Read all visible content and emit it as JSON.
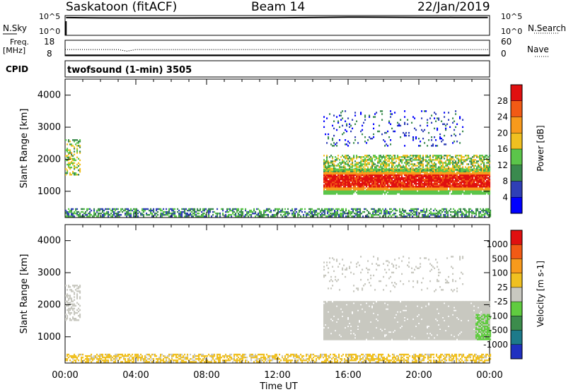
{
  "header": {
    "station": "Saskatoon (fitACF)",
    "beam": "Beam 14",
    "date": "22/Jan/2019"
  },
  "top_panels": {
    "nsky_label": "N.Sky",
    "nsky_ticks": [
      "10^5",
      "10^0"
    ],
    "nsearch_label": "N.Search",
    "nsearch_ticks": [
      "10^5",
      "10^0"
    ],
    "freq_label": "Freq.",
    "freq_unit": "[MHz]",
    "freq_ticks": [
      "18",
      "8"
    ],
    "nave_label": "Nave",
    "nave_ticks": [
      "60",
      "0"
    ],
    "cpid_label": "CPID",
    "cpid_value": "twofsound (1-min) 3505"
  },
  "power_panel": {
    "ylabel": "Slant Range [km]",
    "yticks": [
      "4000",
      "3000",
      "2000",
      "1000"
    ],
    "colorbar_label": "Power [dB]",
    "colorbar_ticks": [
      "28",
      "24",
      "20",
      "16",
      "12",
      "8",
      "4"
    ],
    "colors": [
      "#0000ff",
      "#2f3fb6",
      "#3a8a4e",
      "#5bc54a",
      "#f0c020",
      "#f89a1c",
      "#f25a15",
      "#e01010"
    ]
  },
  "velocity_panel": {
    "ylabel": "Slant Range [km]",
    "yticks": [
      "4000",
      "3000",
      "2000",
      "1000"
    ],
    "colorbar_label": "Velocity [m s-1]",
    "colorbar_ticks": [
      "1000",
      "500",
      "100",
      "25",
      "-25",
      "-100",
      "-500",
      "-1000"
    ],
    "colors": [
      "#2030c0",
      "#1d7a8a",
      "#3c8c4c",
      "#60cc40",
      "#c8c8c0",
      "#f0c020",
      "#f89a1c",
      "#f25a15",
      "#e01010"
    ]
  },
  "x_axis": {
    "ticks": [
      "00:00",
      "04:00",
      "08:00",
      "12:00",
      "16:00",
      "20:00",
      "00:00"
    ],
    "label": "Time UT"
  },
  "chart_data": [
    {
      "type": "line",
      "panel": "N.Sky / N.Search",
      "xlim": [
        0,
        24
      ],
      "series": [
        {
          "x": [
            0.05,
            2,
            4,
            6,
            8,
            10,
            12,
            14,
            16,
            18,
            20,
            22,
            23.9
          ],
          "y": [
            30000,
            25000,
            24000,
            24000,
            25000,
            25000,
            27000,
            32000,
            40000,
            38000,
            35000,
            33000,
            32000
          ]
        }
      ]
    },
    {
      "type": "line",
      "panel": "Freq. / Nave",
      "xlim": [
        0,
        24
      ],
      "ylim": [
        8,
        18
      ],
      "series": [
        {
          "x": [
            0,
            3,
            3.5,
            4,
            24
          ],
          "y": [
            12,
            12,
            11,
            12,
            12
          ]
        },
        {
          "x": [
            0,
            24
          ],
          "y": [
            8.3,
            8.3
          ]
        }
      ]
    },
    {
      "type": "heatmap",
      "panel": "Power [dB]",
      "xlabel": "Time UT",
      "ylabel": "Slant Range [km]",
      "xlim": [
        0,
        24
      ],
      "ylim": [
        180,
        4500
      ],
      "clim": [
        0,
        30
      ],
      "regions": [
        {
          "t": [
            0.0,
            0.8
          ],
          "r": [
            1500,
            2600
          ],
          "value": 14
        },
        {
          "t": [
            14.6,
            24.0
          ],
          "r": [
            900,
            1700
          ],
          "value": 26
        },
        {
          "t": [
            14.6,
            24.0
          ],
          "r": [
            1600,
            2100
          ],
          "value": 14
        },
        {
          "t": [
            14.6,
            22.5
          ],
          "r": [
            2400,
            3500
          ],
          "value": 6
        },
        {
          "t": [
            0.0,
            24.0
          ],
          "r": [
            200,
            450
          ],
          "value": 10
        }
      ]
    },
    {
      "type": "heatmap",
      "panel": "Velocity [m s-1]",
      "xlabel": "Time UT",
      "ylabel": "Slant Range [km]",
      "xlim": [
        0,
        24
      ],
      "ylim": [
        180,
        4500
      ],
      "clim": [
        -1000,
        1000
      ],
      "regions": [
        {
          "t": [
            0.0,
            0.8
          ],
          "r": [
            1500,
            2600
          ],
          "value": 0
        },
        {
          "t": [
            14.6,
            24.0
          ],
          "r": [
            900,
            2100
          ],
          "value": 0
        },
        {
          "t": [
            23.2,
            24.0
          ],
          "r": [
            900,
            1700
          ],
          "value": 60
        },
        {
          "t": [
            14.6,
            22.5
          ],
          "r": [
            2400,
            3500
          ],
          "value": 0
        },
        {
          "t": [
            0.0,
            24.0
          ],
          "r": [
            200,
            450
          ],
          "value": -60
        }
      ]
    }
  ]
}
